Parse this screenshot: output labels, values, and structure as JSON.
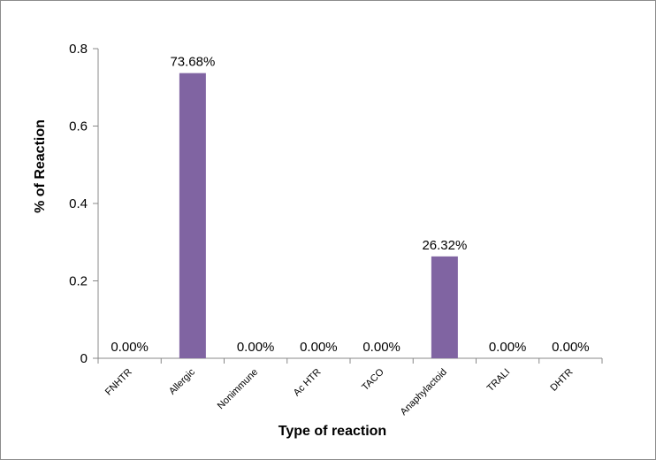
{
  "chart_data": {
    "type": "bar",
    "title": "",
    "xlabel": "Type of reaction",
    "ylabel": "% of Reaction",
    "categories": [
      "FNHTR",
      "Allergic",
      "Nonimmune",
      "Ac HTR",
      "TACO",
      "Anaphylactoid",
      "TRALI",
      "DHTR"
    ],
    "values": [
      0,
      0.7368,
      0,
      0,
      0,
      0.2632,
      0,
      0
    ],
    "data_labels": [
      "0.00%",
      "73.68%",
      "0.00%",
      "0.00%",
      "0.00%",
      "26.32%",
      "0.00%",
      "0.00%"
    ],
    "ylim": [
      0,
      0.8
    ],
    "yticks": [
      0,
      0.2,
      0.4,
      0.6,
      0.8
    ],
    "ytick_labels": [
      "0",
      "0.2",
      "0.4",
      "0.6",
      "0.8"
    ],
    "bar_color": "#8064a2",
    "grid": false,
    "legend": "none"
  }
}
